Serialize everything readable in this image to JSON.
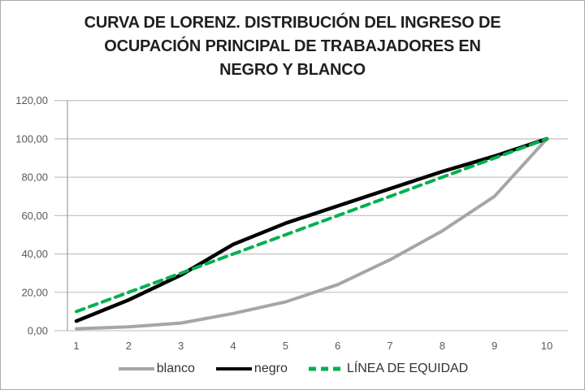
{
  "header": {
    "title_lines": [
      "CURVA DE LORENZ. DISTRIBUCIÓN DEL INGRESO DE",
      "OCUPACIÓN PRINCIPAL DE TRABAJADORES EN",
      "NEGRO Y BLANCO"
    ]
  },
  "chart_data": {
    "type": "line",
    "title": "CURVA DE LORENZ. DISTRIBUCIÓN DEL INGRESO DE OCUPACIÓN PRINCIPAL DE TRABAJADORES EN NEGRO Y BLANCO",
    "x": [
      1,
      2,
      3,
      4,
      5,
      6,
      7,
      8,
      9,
      10
    ],
    "xtick_labels": [
      "1",
      "2",
      "3",
      "4",
      "5",
      "6",
      "7",
      "8",
      "9",
      "10"
    ],
    "ytick_values": [
      0,
      20,
      40,
      60,
      80,
      100,
      120
    ],
    "ytick_labels": [
      "0,00",
      "20,00",
      "40,00",
      "60,00",
      "80,00",
      "100,00",
      "120,00"
    ],
    "ylim": [
      0,
      120
    ],
    "grid": true,
    "legend_position": "bottom",
    "series": [
      {
        "name": "blanco",
        "color": "#a6a6a6",
        "style": "solid",
        "values": [
          1,
          2,
          4,
          9,
          15,
          24,
          37,
          52,
          70,
          100
        ]
      },
      {
        "name": "negro",
        "color": "#000000",
        "style": "solid",
        "values": [
          5,
          16,
          29,
          45,
          56,
          65,
          74,
          83,
          91,
          100
        ]
      },
      {
        "name": "LÍNEA DE EQUIDAD",
        "color": "#00b050",
        "style": "dashed",
        "values": [
          10,
          20,
          30,
          40,
          50,
          60,
          70,
          80,
          90,
          100
        ]
      }
    ]
  },
  "colors": {
    "gridline": "#c6c6c6",
    "axis_line": "#a6a6a6",
    "tick_label": "#595959",
    "title_text": "#1f1f1f"
  }
}
